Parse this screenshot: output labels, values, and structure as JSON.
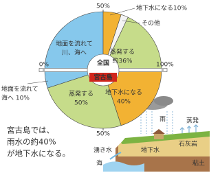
{
  "chart_data": {
    "type": "pie",
    "halves": [
      {
        "name": "全国",
        "ticks": [
          {
            "value": 0,
            "label": "0%"
          },
          {
            "value": 50,
            "label": "50%"
          },
          {
            "value": 100,
            "label": "100%"
          }
        ],
        "slices": [
          {
            "label": [
              "地面を流れて",
              "川、海へ"
            ],
            "value": 50,
            "color": "#86c8ec"
          },
          {
            "label": [
              "地下水になる10%"
            ],
            "value": 10,
            "color": "#f2b233"
          },
          {
            "label": [
              "その他"
            ],
            "value": 4,
            "color": "#f4f4f4"
          },
          {
            "label": [
              "蒸発する",
              "約36%"
            ],
            "value": 36,
            "color": "#c6dc8a"
          }
        ]
      },
      {
        "name": "宮古島",
        "ticks": [
          {
            "value": 50,
            "label": "50%"
          }
        ],
        "slices": [
          {
            "label": [
              "地面を流れて",
              "海へ 10%"
            ],
            "value": 10,
            "color": "#86c8ec"
          },
          {
            "label": [
              "蒸発する",
              "50%"
            ],
            "value": 50,
            "color": "#c6dc8a"
          },
          {
            "label": [
              "地下水になる",
              "40%"
            ],
            "value": 40,
            "color": "#f2b233"
          }
        ]
      }
    ]
  },
  "caption": [
    "宮古島では、",
    "雨水の約40%",
    "が地下水になる。"
  ],
  "diagram": {
    "rain": "雨",
    "evaporation": "蒸発",
    "spring": "湧き水",
    "groundwater": "地下水",
    "limestone": "石灰岩",
    "clay": "粘土",
    "sea": "海"
  }
}
